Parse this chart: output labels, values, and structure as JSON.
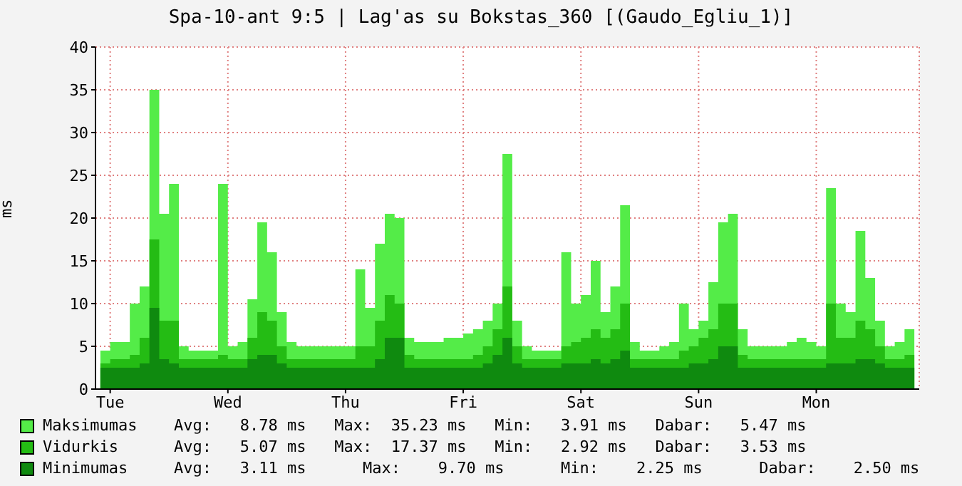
{
  "chart_data": {
    "type": "area",
    "title": "Spa-10-ant 9:5 | Lag'as su Bokstas_360 [(Gaudo_Egliu_1)]",
    "ylabel": "ms",
    "categories": [
      null,
      "Tue",
      null,
      null,
      null,
      null,
      null,
      null,
      null,
      null,
      null,
      null,
      null,
      "Wed",
      null,
      null,
      null,
      null,
      null,
      null,
      null,
      null,
      null,
      null,
      null,
      "Thu",
      null,
      null,
      null,
      null,
      null,
      null,
      null,
      null,
      null,
      null,
      null,
      "Fri",
      null,
      null,
      null,
      null,
      null,
      null,
      null,
      null,
      null,
      null,
      null,
      "Sat",
      null,
      null,
      null,
      null,
      null,
      null,
      null,
      null,
      null,
      null,
      null,
      "Sun",
      null,
      null,
      null,
      null,
      null,
      null,
      null,
      null,
      null,
      null,
      null,
      "Mon",
      null,
      null,
      null,
      null,
      null,
      null,
      null,
      null,
      null,
      null
    ],
    "series": [
      {
        "name": "Maksimumas",
        "color": "#54ec48",
        "values": [
          4.5,
          5.5,
          5.5,
          10,
          12,
          35,
          20.5,
          24,
          5,
          4.5,
          4.5,
          4.5,
          24,
          5,
          5.5,
          10.5,
          19.5,
          16,
          9,
          5.5,
          5,
          5,
          5,
          5,
          5,
          5,
          14,
          9.5,
          17,
          20.5,
          20,
          6,
          5.5,
          5.5,
          5.5,
          6,
          6,
          6.5,
          7,
          8,
          10,
          27.5,
          8,
          5,
          4.5,
          4.5,
          4.5,
          16,
          10,
          11,
          15,
          9,
          12,
          21.5,
          5.5,
          4.5,
          4.5,
          5,
          5.5,
          10,
          7,
          8,
          12.5,
          19.5,
          20.5,
          7,
          5,
          5,
          5,
          5,
          5.5,
          6,
          5.5,
          5,
          23.5,
          10,
          9,
          18.5,
          13,
          8,
          5,
          5.5,
          7,
          5.5
        ]
      },
      {
        "name": "Vidurkis",
        "color": "#24bc14",
        "values": [
          3,
          3.5,
          3.5,
          4,
          6,
          17.5,
          8,
          8,
          3.5,
          3.5,
          3.5,
          3.5,
          4,
          3.5,
          3.5,
          6,
          9,
          8,
          5,
          3.5,
          3.5,
          3.5,
          3.5,
          3.5,
          3.5,
          3.5,
          5,
          5,
          8,
          11,
          10,
          4,
          3.5,
          3.5,
          3.5,
          3.5,
          3.5,
          3.5,
          4,
          5,
          7,
          12,
          5,
          3.5,
          3.5,
          3.5,
          3.5,
          5,
          5.5,
          6,
          7,
          6,
          7,
          10,
          3.5,
          3.5,
          3.5,
          3.5,
          3.5,
          4.5,
          5,
          6,
          7,
          10,
          10,
          4,
          3.5,
          3.5,
          3.5,
          3.5,
          3.5,
          3.5,
          3.5,
          3.5,
          10,
          6,
          6,
          8,
          7,
          5,
          3.5,
          3.5,
          4,
          3.5
        ]
      },
      {
        "name": "Minimumas",
        "color": "#0f8a0f",
        "values": [
          2.5,
          2.5,
          2.5,
          2.5,
          3,
          9.5,
          3.5,
          3,
          2.5,
          2.5,
          2.5,
          2.5,
          2.5,
          2.5,
          2.5,
          3.5,
          4,
          4,
          3,
          2.5,
          2.5,
          2.5,
          2.5,
          2.5,
          2.5,
          2.5,
          2.5,
          2.5,
          3.5,
          6,
          6,
          2.5,
          2.5,
          2.5,
          2.5,
          2.5,
          2.5,
          2.5,
          2.5,
          3,
          4,
          6,
          3,
          2.5,
          2.5,
          2.5,
          2.5,
          3,
          3,
          3,
          3.5,
          3,
          3.5,
          4.5,
          2.5,
          2.5,
          2.5,
          2.5,
          2.5,
          2.5,
          3,
          3,
          3.5,
          5,
          5,
          2.5,
          2.5,
          2.5,
          2.5,
          2.5,
          2.5,
          2.5,
          2.5,
          2.5,
          3,
          3,
          3,
          3.5,
          3.5,
          3,
          2.5,
          2.5,
          2.5,
          2.5
        ]
      }
    ],
    "annotations": [
      "Avg:   8.78 ms   Max:  35.23 ms   Min:   3.91 ms   Dabar:   5.47 ms",
      "Avg:   5.07 ms   Max:  17.37 ms   Min:   2.92 ms   Dabar:   3.53 ms",
      "Avg:   3.11 ms      Max:    9.70 ms      Min:    2.25 ms      Dabar:    2.50 ms"
    ],
    "ylim": [
      0,
      40
    ],
    "yticks": [
      0,
      5,
      10,
      15,
      20,
      25,
      30,
      35,
      40
    ],
    "grid": true,
    "legend": "bottom"
  }
}
